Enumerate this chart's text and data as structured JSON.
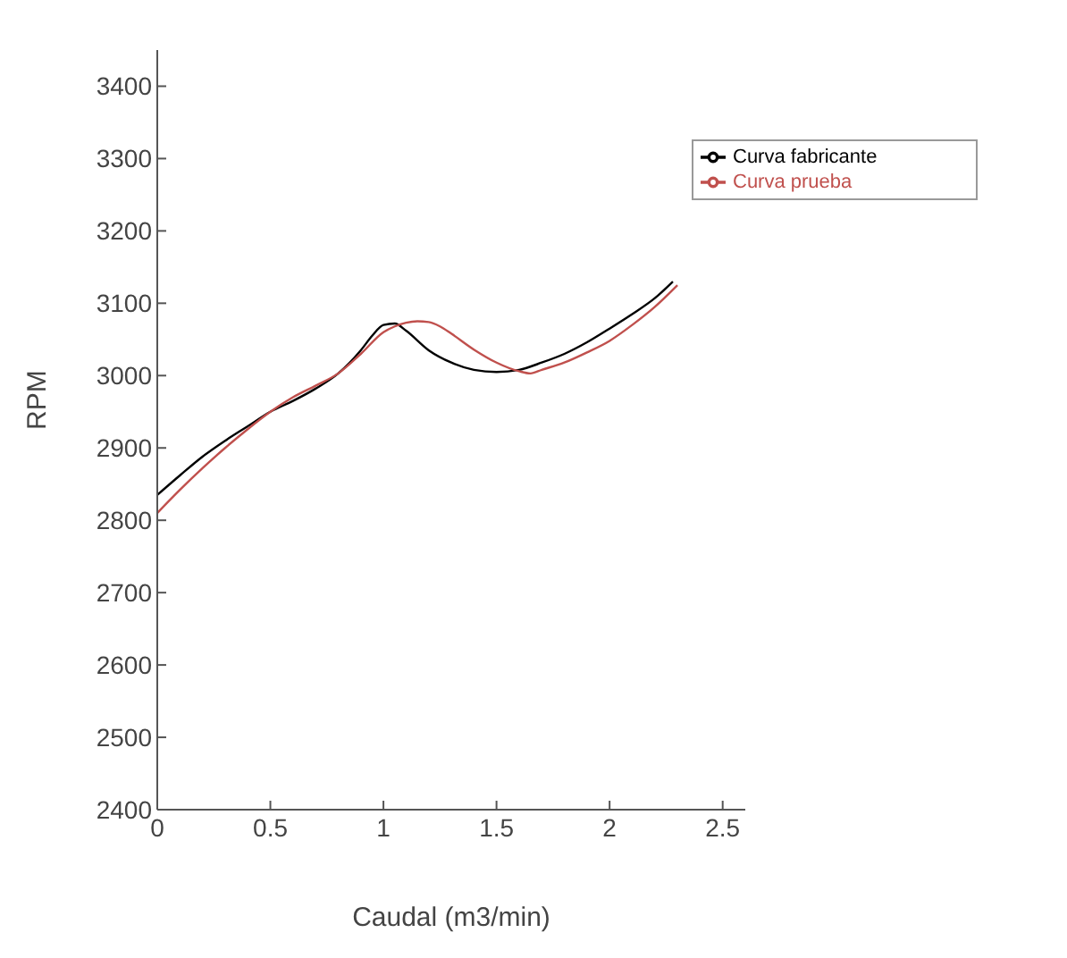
{
  "chart_data": {
    "type": "line",
    "xlabel": "Caudal (m3/min)",
    "ylabel": "RPM",
    "xlim": [
      0,
      2.6
    ],
    "xticks": [
      0,
      0.5,
      1,
      1.5,
      2,
      2.5
    ],
    "ylim": [
      2400,
      3450
    ],
    "yticks": [
      2400,
      2500,
      2600,
      2700,
      2800,
      2900,
      3000,
      3100,
      3200,
      3300,
      3400
    ],
    "grid": false,
    "legend": "top right",
    "marker": "none",
    "line_style": "solid",
    "series": [
      {
        "name": "Curva fabricante",
        "color": "#000000",
        "x": [
          0,
          0.1,
          0.2,
          0.3,
          0.4,
          0.5,
          0.6,
          0.7,
          0.8,
          0.9,
          0.95,
          1.0,
          1.05,
          1.1,
          1.2,
          1.3,
          1.4,
          1.5,
          1.6,
          1.7,
          1.8,
          1.9,
          2.0,
          2.1,
          2.2,
          2.28
        ],
        "values": [
          2835,
          2862,
          2888,
          2910,
          2930,
          2950,
          2965,
          2982,
          3003,
          3035,
          3055,
          3070,
          3072,
          3062,
          3035,
          3018,
          3008,
          3005,
          3008,
          3018,
          3030,
          3046,
          3065,
          3085,
          3107,
          3130
        ]
      },
      {
        "name": "Curva prueba",
        "color": "#c0504d",
        "x": [
          0,
          0.1,
          0.2,
          0.3,
          0.4,
          0.5,
          0.6,
          0.7,
          0.8,
          0.9,
          1.0,
          1.05,
          1.1,
          1.15,
          1.2,
          1.25,
          1.3,
          1.4,
          1.5,
          1.6,
          1.65,
          1.7,
          1.8,
          1.9,
          2.0,
          2.1,
          2.2,
          2.3
        ],
        "values": [
          2810,
          2842,
          2872,
          2900,
          2926,
          2950,
          2970,
          2986,
          3003,
          3030,
          3060,
          3068,
          3073,
          3075,
          3074,
          3068,
          3058,
          3036,
          3018,
          3006,
          3003,
          3008,
          3018,
          3032,
          3048,
          3070,
          3095,
          3125
        ]
      }
    ]
  }
}
